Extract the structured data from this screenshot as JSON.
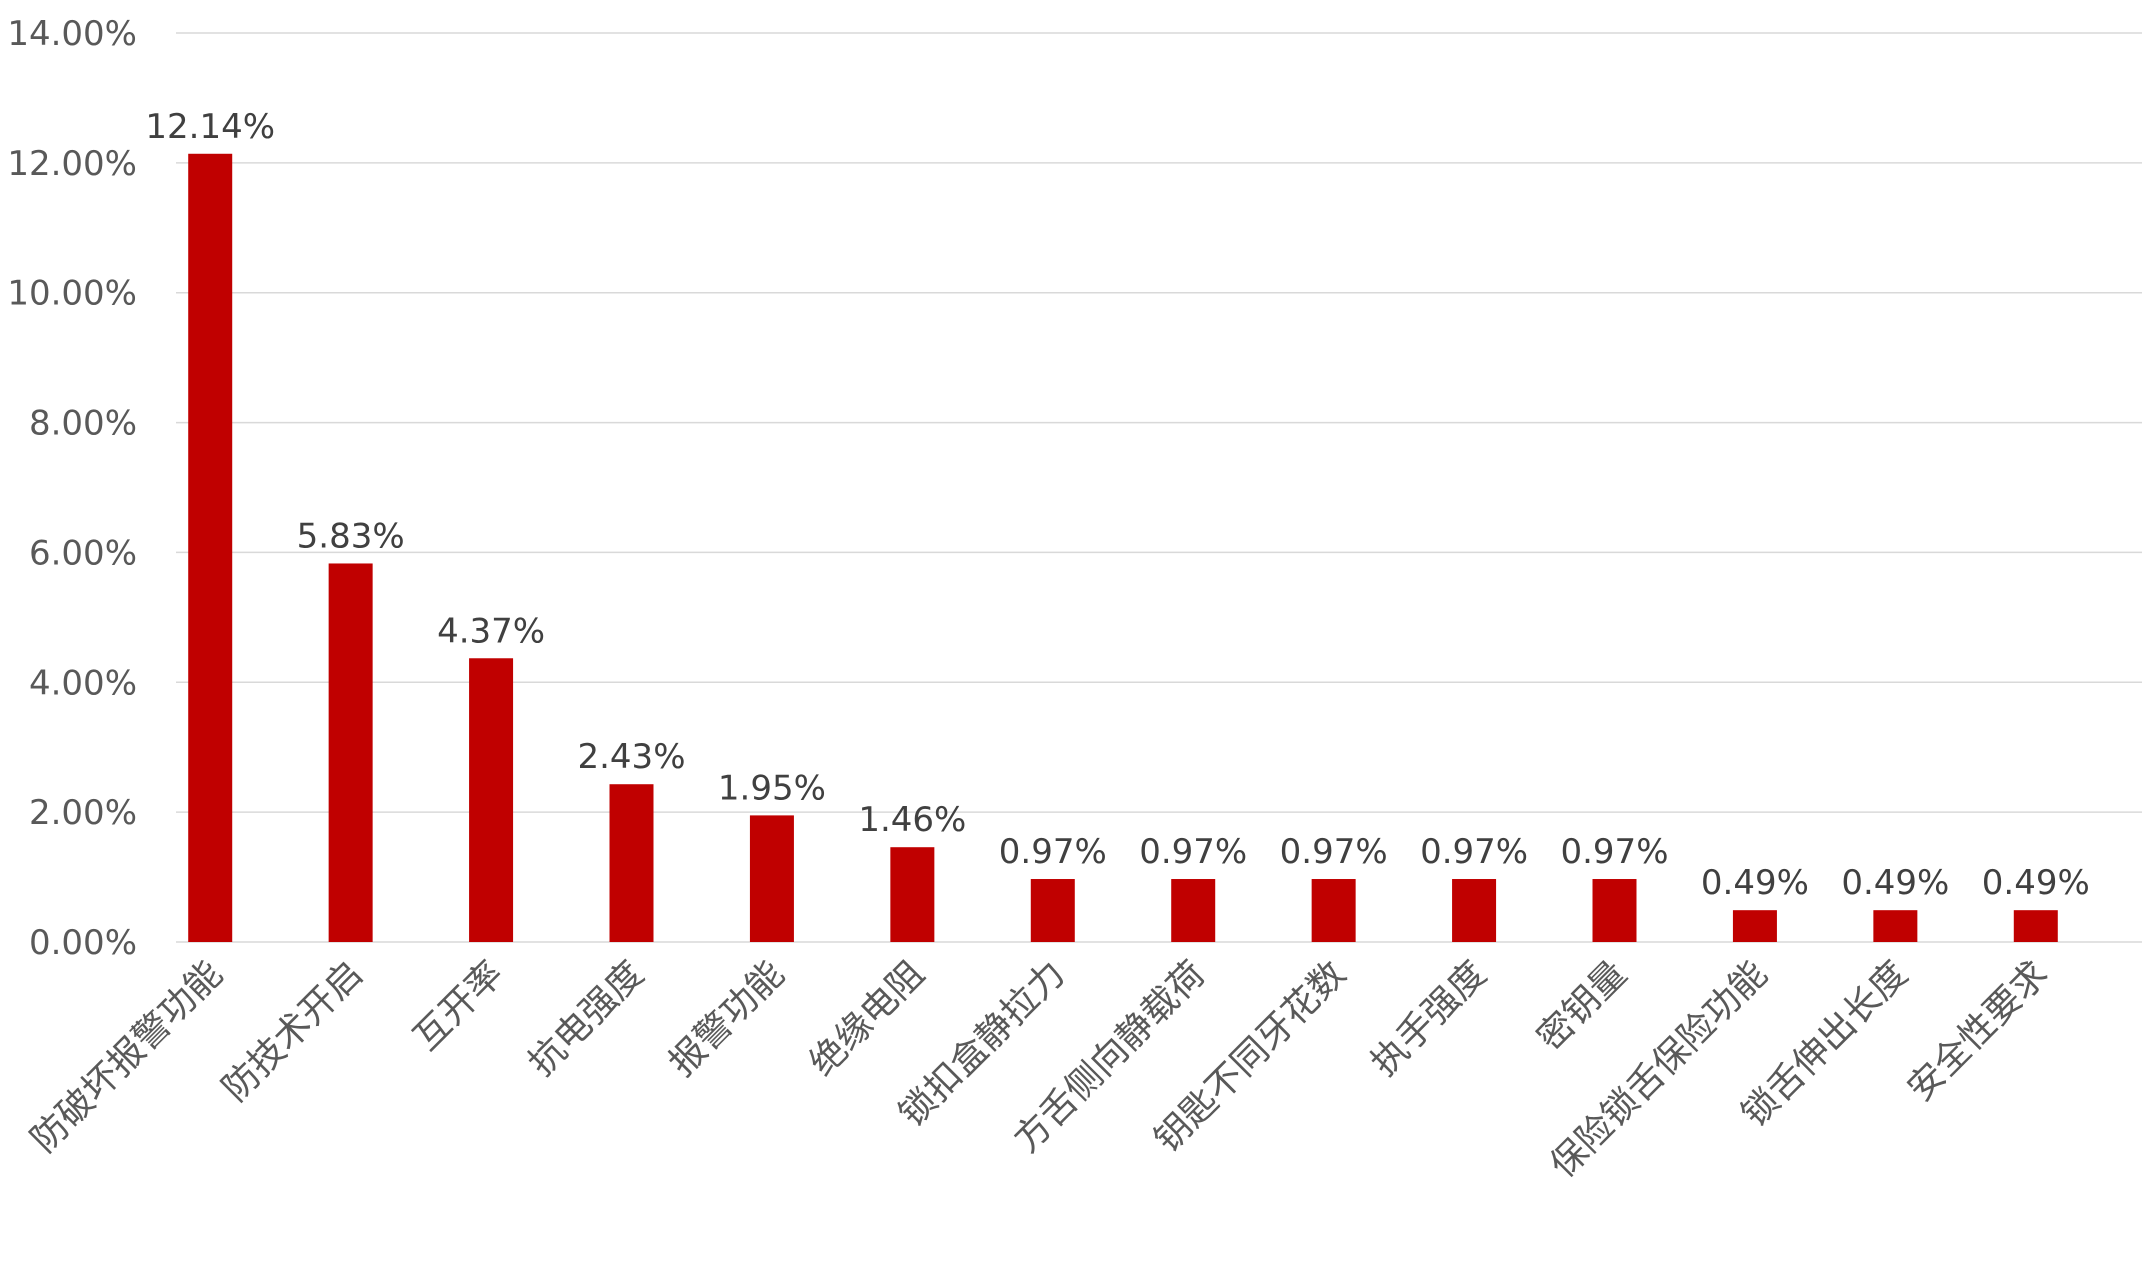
{
  "chart_data": {
    "type": "bar",
    "title": "",
    "xlabel": "",
    "ylabel": "",
    "ylim": [
      0,
      14
    ],
    "yticks": [
      "0.00%",
      "2.00%",
      "4.00%",
      "6.00%",
      "8.00%",
      "10.00%",
      "12.00%",
      "14.00%"
    ],
    "grid": true,
    "categories": [
      "防破坏报警功能",
      "防技术开启",
      "互开率",
      "抗电强度",
      "报警功能",
      "绝缘电阻",
      "锁扣盒静拉力",
      "方舌侧向静载荷",
      "钥匙不同牙花数",
      "执手强度",
      "密钥量",
      "保险锁舌保险功能",
      "锁舌伸出长度",
      "安全性要求"
    ],
    "values": [
      12.14,
      5.83,
      4.37,
      2.43,
      1.95,
      1.46,
      0.97,
      0.97,
      0.97,
      0.97,
      0.97,
      0.49,
      0.49,
      0.49
    ],
    "data_labels": [
      "12.14%",
      "5.83%",
      "4.37%",
      "2.43%",
      "1.95%",
      "1.46%",
      "0.97%",
      "0.97%",
      "0.97%",
      "0.97%",
      "0.97%",
      "0.49%",
      "0.49%",
      "0.49%"
    ],
    "colors": {
      "bar": "#C00000",
      "grid": "#D9D9D9",
      "text": "#595959"
    }
  }
}
